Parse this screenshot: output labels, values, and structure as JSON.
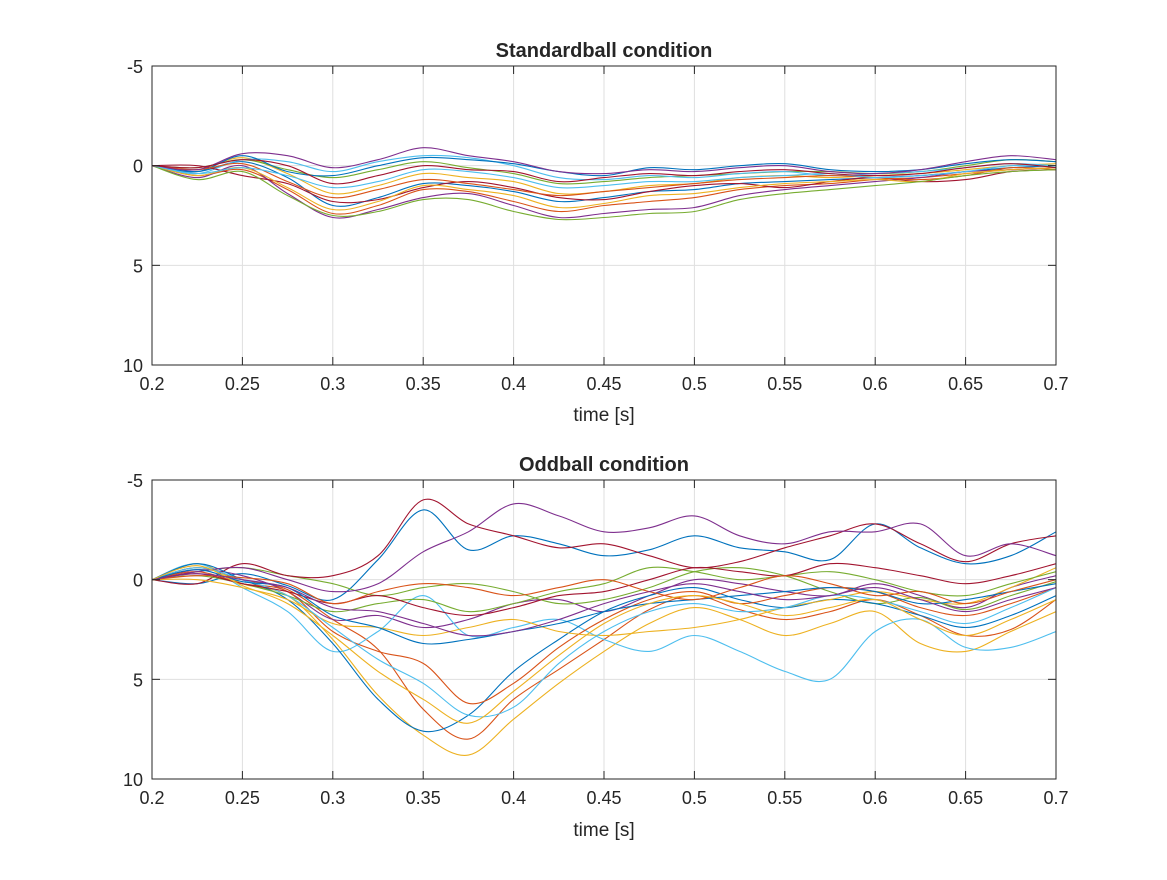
{
  "chart_data": [
    {
      "type": "line",
      "title": "Standardball condition",
      "xlabel": "time [s]",
      "ylabel": "",
      "xlim": [
        0.2,
        0.7
      ],
      "ylim": [
        -5,
        10
      ],
      "y_reversed": true,
      "grid": true,
      "xticks": [
        0.2,
        0.25,
        0.3,
        0.35,
        0.4,
        0.45,
        0.5,
        0.55,
        0.6,
        0.65,
        0.7
      ],
      "xtick_labels": [
        "0.2",
        "0.25",
        "0.3",
        "0.35",
        "0.4",
        "0.45",
        "0.5",
        "0.55",
        "0.6",
        "0.65",
        "0.7"
      ],
      "yticks": [
        -5,
        0,
        5,
        10
      ],
      "ytick_labels": [
        "-5",
        "0",
        "5",
        "10"
      ],
      "x": [
        0.2,
        0.225,
        0.25,
        0.275,
        0.3,
        0.325,
        0.35,
        0.375,
        0.4,
        0.425,
        0.45,
        0.475,
        0.5,
        0.525,
        0.55,
        0.575,
        0.6,
        0.625,
        0.65,
        0.675,
        0.7
      ],
      "series": [
        {
          "name": "trace 1",
          "values": [
            0,
            0.3,
            -0.2,
            0.6,
            2.0,
            1.6,
            0.9,
            1.0,
            1.3,
            1.8,
            1.6,
            1.3,
            1.2,
            0.9,
            0.8,
            0.7,
            0.6,
            0.5,
            0.3,
            0.1,
            0.0
          ]
        },
        {
          "name": "trace 2",
          "values": [
            0,
            0.5,
            0.2,
            1.2,
            2.4,
            2.0,
            1.2,
            1.3,
            1.8,
            2.3,
            2.0,
            1.8,
            1.6,
            1.2,
            1.0,
            0.9,
            0.7,
            0.6,
            0.4,
            0.2,
            0.1
          ]
        },
        {
          "name": "trace 3",
          "values": [
            0,
            0.2,
            -0.4,
            0.4,
            1.4,
            1.0,
            0.4,
            0.6,
            0.8,
            1.4,
            1.3,
            1.0,
            0.9,
            0.6,
            0.5,
            0.6,
            0.5,
            0.4,
            0.2,
            0.0,
            -0.1
          ]
        },
        {
          "name": "trace 4",
          "values": [
            0,
            0.6,
            0.0,
            1.4,
            2.6,
            2.2,
            1.6,
            1.4,
            2.0,
            2.6,
            2.4,
            2.2,
            2.1,
            1.5,
            1.2,
            1.0,
            0.8,
            0.6,
            0.3,
            0.2,
            0.1
          ]
        },
        {
          "name": "trace 5",
          "values": [
            0,
            0.1,
            -0.3,
            0.2,
            0.6,
            0.2,
            -0.2,
            0.1,
            0.4,
            0.9,
            0.8,
            0.6,
            0.5,
            0.4,
            0.3,
            0.3,
            0.4,
            0.3,
            0.0,
            -0.3,
            -0.2
          ]
        },
        {
          "name": "trace 6",
          "values": [
            0,
            0.4,
            -0.3,
            -0.2,
            0.3,
            -0.2,
            -0.5,
            -0.4,
            0.0,
            0.6,
            0.7,
            0.5,
            0.6,
            0.4,
            0.3,
            0.5,
            0.4,
            0.3,
            0.1,
            -0.1,
            0.0
          ]
        },
        {
          "name": "trace 7",
          "values": [
            0,
            0.0,
            0.5,
            0.9,
            1.8,
            1.7,
            1.1,
            0.8,
            1.1,
            1.6,
            1.7,
            1.3,
            1.0,
            0.9,
            1.1,
            0.8,
            0.6,
            0.8,
            0.7,
            0.3,
            0.2
          ]
        },
        {
          "name": "trace 8",
          "values": [
            0,
            0.3,
            -0.5,
            0.3,
            0.5,
            0.0,
            -0.4,
            -0.3,
            -0.1,
            0.3,
            0.5,
            0.1,
            0.2,
            0.0,
            -0.1,
            0.2,
            0.3,
            0.2,
            -0.1,
            -0.3,
            -0.2
          ]
        },
        {
          "name": "trace 9",
          "values": [
            0,
            0.2,
            -0.1,
            0.8,
            1.6,
            1.2,
            0.7,
            0.9,
            1.2,
            1.5,
            1.3,
            1.1,
            0.9,
            0.7,
            0.6,
            0.5,
            0.6,
            0.7,
            0.5,
            0.1,
            0.2
          ]
        },
        {
          "name": "trace 10",
          "values": [
            0,
            0.5,
            0.1,
            1.1,
            2.2,
            1.8,
            1.0,
            1.2,
            1.5,
            2.1,
            1.9,
            1.5,
            1.4,
            1.1,
            0.9,
            0.8,
            0.7,
            0.8,
            0.4,
            0.2,
            0.1
          ]
        },
        {
          "name": "trace 11",
          "values": [
            0,
            0.2,
            -0.6,
            -0.5,
            0.1,
            -0.3,
            -0.9,
            -0.5,
            -0.2,
            0.3,
            0.4,
            0.2,
            0.3,
            0.1,
            0.0,
            0.3,
            0.4,
            0.2,
            -0.2,
            -0.5,
            -0.3
          ]
        },
        {
          "name": "trace 12",
          "values": [
            0,
            0.7,
            0.3,
            1.5,
            2.5,
            2.3,
            1.7,
            1.7,
            2.3,
            2.7,
            2.6,
            2.4,
            2.3,
            1.7,
            1.4,
            1.2,
            1.0,
            0.8,
            0.5,
            0.3,
            0.2
          ]
        },
        {
          "name": "trace 13",
          "values": [
            0,
            0.4,
            0.1,
            0.5,
            1.1,
            0.8,
            0.2,
            0.3,
            0.6,
            1.1,
            1.0,
            0.8,
            0.8,
            0.6,
            0.5,
            0.4,
            0.6,
            0.5,
            0.3,
            0.0,
            0.0
          ]
        },
        {
          "name": "trace 14",
          "values": [
            0,
            0.1,
            -0.3,
            0.0,
            0.9,
            0.5,
            0.0,
            0.2,
            0.3,
            0.8,
            0.6,
            0.4,
            0.5,
            0.3,
            0.2,
            0.4,
            0.5,
            0.4,
            0.1,
            -0.1,
            0.1
          ]
        }
      ]
    },
    {
      "type": "line",
      "title": "Oddball condition",
      "xlabel": "time [s]",
      "ylabel": "",
      "xlim": [
        0.2,
        0.7
      ],
      "ylim": [
        -5,
        10
      ],
      "y_reversed": true,
      "grid": true,
      "xticks": [
        0.2,
        0.25,
        0.3,
        0.35,
        0.4,
        0.45,
        0.5,
        0.55,
        0.6,
        0.65,
        0.7
      ],
      "xtick_labels": [
        "0.2",
        "0.25",
        "0.3",
        "0.35",
        "0.4",
        "0.45",
        "0.5",
        "0.55",
        "0.6",
        "0.65",
        "0.7"
      ],
      "yticks": [
        -5,
        0,
        5,
        10
      ],
      "ytick_labels": [
        "-5",
        "0",
        "5",
        "10"
      ],
      "x": [
        0.2,
        0.225,
        0.25,
        0.275,
        0.3,
        0.325,
        0.35,
        0.375,
        0.4,
        0.425,
        0.45,
        0.475,
        0.5,
        0.525,
        0.55,
        0.575,
        0.6,
        0.625,
        0.65,
        0.675,
        0.7
      ],
      "series": [
        {
          "name": "trace 1",
          "values": [
            0,
            0.2,
            -0.3,
            0.3,
            1.0,
            -1.0,
            -3.5,
            -1.5,
            -2.2,
            -1.8,
            -1.2,
            -1.5,
            -2.2,
            -1.6,
            -1.4,
            -1.0,
            -2.8,
            -1.6,
            -0.8,
            -1.2,
            -2.4
          ]
        },
        {
          "name": "trace 2",
          "values": [
            0,
            -0.6,
            0.0,
            0.5,
            2.0,
            3.5,
            6.5,
            8.0,
            6.0,
            4.5,
            3.0,
            1.5,
            0.8,
            1.5,
            2.0,
            1.6,
            1.0,
            1.8,
            2.8,
            2.5,
            1.0
          ]
        },
        {
          "name": "trace 3",
          "values": [
            0,
            -0.8,
            0.2,
            0.8,
            3.0,
            5.8,
            7.8,
            8.8,
            7.0,
            5.2,
            3.6,
            2.2,
            1.4,
            2.0,
            2.8,
            2.2,
            1.6,
            3.2,
            3.6,
            2.6,
            1.6
          ]
        },
        {
          "name": "trace 4",
          "values": [
            0,
            -0.5,
            -0.2,
            0.6,
            2.0,
            1.8,
            2.4,
            2.0,
            1.2,
            1.0,
            1.6,
            0.8,
            0.0,
            0.2,
            0.6,
            0.8,
            0.2,
            0.8,
            1.4,
            0.4,
            -0.2
          ]
        },
        {
          "name": "trace 5",
          "values": [
            0,
            -0.4,
            -0.6,
            -0.2,
            0.2,
            0.8,
            0.4,
            0.2,
            0.6,
            1.2,
            1.0,
            0.4,
            -0.4,
            -0.6,
            -0.2,
            0.6,
            1.2,
            0.9,
            1.5,
            0.8,
            0.1
          ]
        },
        {
          "name": "trace 6",
          "values": [
            0,
            -0.8,
            0.4,
            1.6,
            3.6,
            2.6,
            0.8,
            2.8,
            2.4,
            2.0,
            3.0,
            3.6,
            2.8,
            3.6,
            4.6,
            5.0,
            2.6,
            2.0,
            3.4,
            3.4,
            2.6
          ]
        },
        {
          "name": "trace 7",
          "values": [
            0,
            0.2,
            -0.8,
            -0.2,
            -0.2,
            -1.2,
            -4.0,
            -2.8,
            -2.2,
            -1.6,
            -1.8,
            -1.2,
            -0.6,
            -0.9,
            -1.6,
            -2.2,
            -2.8,
            -1.8,
            -0.9,
            -1.8,
            -2.2
          ]
        },
        {
          "name": "trace 8",
          "values": [
            0,
            -0.8,
            0.0,
            1.0,
            3.2,
            6.0,
            7.6,
            6.8,
            4.6,
            3.0,
            1.6,
            0.8,
            0.4,
            1.0,
            1.4,
            1.0,
            1.2,
            1.8,
            2.4,
            1.8,
            0.8
          ]
        },
        {
          "name": "trace 9",
          "values": [
            0,
            -0.4,
            0.2,
            0.6,
            2.6,
            3.6,
            4.2,
            6.2,
            5.2,
            3.4,
            2.0,
            1.0,
            0.6,
            1.2,
            0.8,
            0.4,
            0.6,
            1.4,
            1.8,
            1.2,
            0.4
          ]
        },
        {
          "name": "trace 10",
          "values": [
            0,
            0.0,
            0.4,
            1.0,
            2.2,
            2.4,
            2.8,
            2.4,
            2.0,
            2.6,
            2.8,
            2.6,
            2.4,
            2.0,
            1.4,
            1.0,
            0.6,
            1.0,
            1.2,
            0.4,
            -0.6
          ]
        },
        {
          "name": "trace 11",
          "values": [
            0,
            -0.4,
            -0.6,
            0.0,
            0.6,
            0.2,
            -1.4,
            -2.4,
            -3.8,
            -3.2,
            -2.4,
            -2.6,
            -3.2,
            -2.2,
            -1.8,
            -2.4,
            -2.4,
            -2.8,
            -1.2,
            -1.8,
            -1.2
          ]
        },
        {
          "name": "trace 12",
          "values": [
            0,
            -0.2,
            0.2,
            0.8,
            1.6,
            1.2,
            1.0,
            1.6,
            1.2,
            0.6,
            0.2,
            -0.6,
            -0.4,
            0.0,
            -0.2,
            -0.4,
            0.0,
            0.6,
            0.8,
            0.2,
            -0.4
          ]
        },
        {
          "name": "trace 13",
          "values": [
            0,
            -0.6,
            0.0,
            0.8,
            2.4,
            4.0,
            5.2,
            6.8,
            6.4,
            4.2,
            2.6,
            1.6,
            1.2,
            1.6,
            1.4,
            0.8,
            1.0,
            1.6,
            2.2,
            1.4,
            0.4
          ]
        },
        {
          "name": "trace 14",
          "values": [
            0,
            -0.3,
            0.2,
            0.6,
            1.2,
            0.8,
            1.4,
            1.8,
            1.4,
            0.8,
            0.6,
            0.0,
            -0.6,
            -0.4,
            -0.2,
            -0.8,
            -0.6,
            -0.2,
            0.2,
            -0.2,
            -0.8
          ]
        },
        {
          "name": "trace 15",
          "values": [
            0,
            -0.5,
            0.1,
            0.4,
            1.8,
            2.4,
            3.2,
            3.0,
            2.6,
            2.2,
            1.6,
            1.2,
            1.0,
            0.8,
            0.6,
            0.4,
            0.6,
            1.2,
            1.0,
            0.6,
            0.2
          ]
        },
        {
          "name": "trace 16",
          "values": [
            0,
            -0.2,
            -0.1,
            0.2,
            1.2,
            0.6,
            0.2,
            0.4,
            0.8,
            0.4,
            0.0,
            0.6,
            1.0,
            0.4,
            -0.2,
            0.2,
            0.8,
            0.6,
            1.2,
            0.6,
            0.0
          ]
        },
        {
          "name": "trace 17",
          "values": [
            0,
            -0.7,
            0.3,
            1.2,
            2.8,
            4.6,
            6.0,
            7.2,
            5.6,
            3.8,
            2.2,
            1.2,
            0.8,
            1.2,
            1.8,
            1.4,
            1.0,
            2.0,
            2.8,
            2.0,
            1.0
          ]
        },
        {
          "name": "trace 18",
          "values": [
            0,
            -0.3,
            0.0,
            0.4,
            1.4,
            1.6,
            2.2,
            2.8,
            2.6,
            2.0,
            1.2,
            0.6,
            0.2,
            0.6,
            1.0,
            0.8,
            0.4,
            1.0,
            1.6,
            1.0,
            0.4
          ]
        }
      ]
    }
  ]
}
